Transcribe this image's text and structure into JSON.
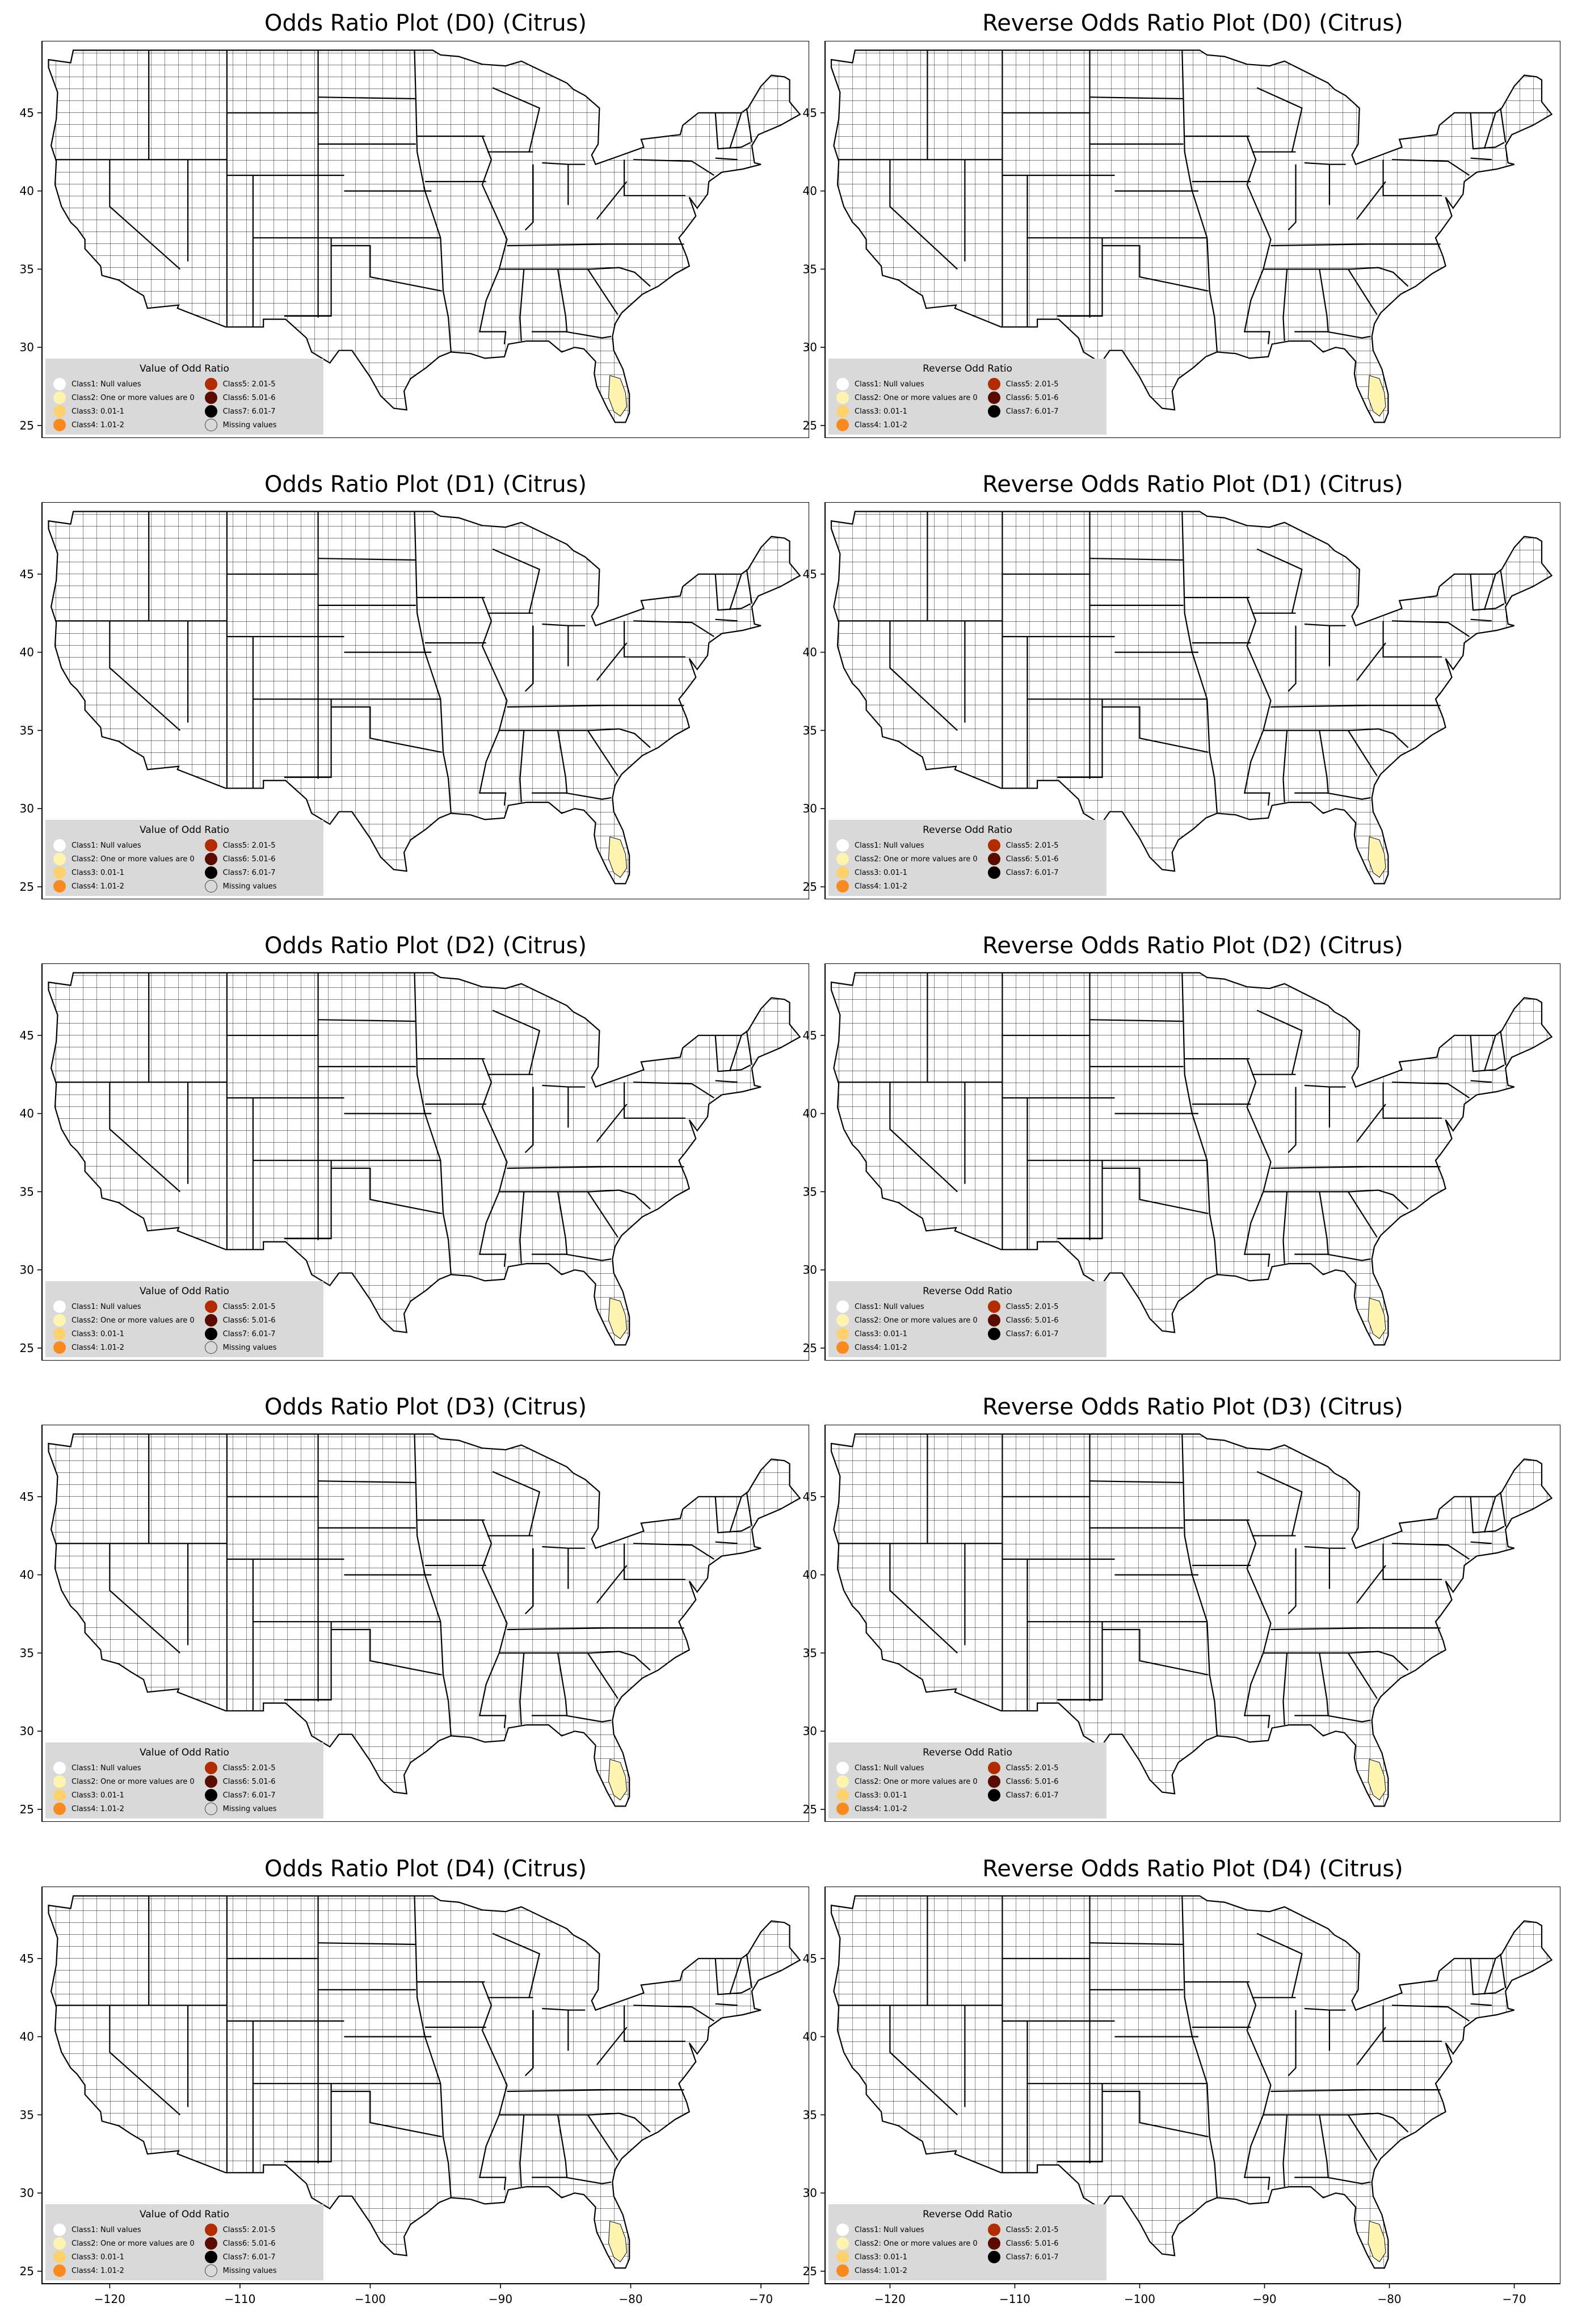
{
  "figure": {
    "panels": [
      {
        "title": "Odds Ratio Plot (D0) (Citrus)",
        "legend_key": "odds"
      },
      {
        "title": "Reverse Odds Ratio Plot (D0) (Citrus)",
        "legend_key": "reverse"
      },
      {
        "title": "Odds Ratio Plot (D1) (Citrus)",
        "legend_key": "odds"
      },
      {
        "title": "Reverse Odds Ratio Plot (D1) (Citrus)",
        "legend_key": "reverse"
      },
      {
        "title": "Odds Ratio Plot (D2) (Citrus)",
        "legend_key": "odds"
      },
      {
        "title": "Reverse Odds Ratio Plot (D2) (Citrus)",
        "legend_key": "reverse"
      },
      {
        "title": "Odds Ratio Plot (D3) (Citrus)",
        "legend_key": "odds"
      },
      {
        "title": "Reverse Odds Ratio Plot (D3) (Citrus)",
        "legend_key": "reverse"
      },
      {
        "title": "Odds Ratio Plot (D4) (Citrus)",
        "legend_key": "odds"
      },
      {
        "title": "Reverse Odds Ratio Plot (D4) (Citrus)",
        "legend_key": "reverse"
      }
    ]
  },
  "legends": {
    "odds": {
      "title": "Value of Odd Ratio",
      "items": [
        {
          "label": "Class1: Null values",
          "color": "#ffffff"
        },
        {
          "label": "Class5: 2.01-5",
          "color": "#b22c00"
        },
        {
          "label": "Class2: One or more values are 0",
          "color": "#fff3b0"
        },
        {
          "label": "Class6: 5.01-6",
          "color": "#5a0c00"
        },
        {
          "label": "Class3: 0.01-1",
          "color": "#fdd26e"
        },
        {
          "label": "Class7: 6.01-7",
          "color": "#000000"
        },
        {
          "label": "Class4: 1.01-2",
          "color": "#fb8a1e"
        },
        {
          "label": "Missing values",
          "color": "#d9d9d9"
        }
      ]
    },
    "reverse": {
      "title": "Reverse Odd Ratio",
      "items": [
        {
          "label": "Class1: Null values",
          "color": "#ffffff"
        },
        {
          "label": "Class5: 2.01-5",
          "color": "#b22c00"
        },
        {
          "label": "Class2: One or more values are 0",
          "color": "#fff3b0"
        },
        {
          "label": "Class6: 5.01-6",
          "color": "#5a0c00"
        },
        {
          "label": "Class3: 0.01-1",
          "color": "#fdd26e"
        },
        {
          "label": "Class7: 6.01-7",
          "color": "#000000"
        },
        {
          "label": "Class4: 1.01-2",
          "color": "#fb8a1e"
        }
      ]
    }
  },
  "axes": {
    "x_ticks": [
      -120,
      -110,
      -100,
      -90,
      -80,
      -70
    ],
    "y_ticks": [
      25,
      30,
      35,
      40,
      45
    ],
    "x_tick_labels": [
      "−120",
      "−110",
      "−100",
      "−90",
      "−80",
      "−70"
    ],
    "y_tick_labels": [
      "25",
      "30",
      "35",
      "40",
      "45"
    ],
    "xlim": [
      -125.2,
      -66.3
    ],
    "ylim": [
      24.2,
      49.6
    ]
  },
  "colors": {
    "county_fill": "#ffffff",
    "county_line": "#000000",
    "highlight_fill": "#fff3b0",
    "legend_bg": "#d9d9d9"
  }
}
